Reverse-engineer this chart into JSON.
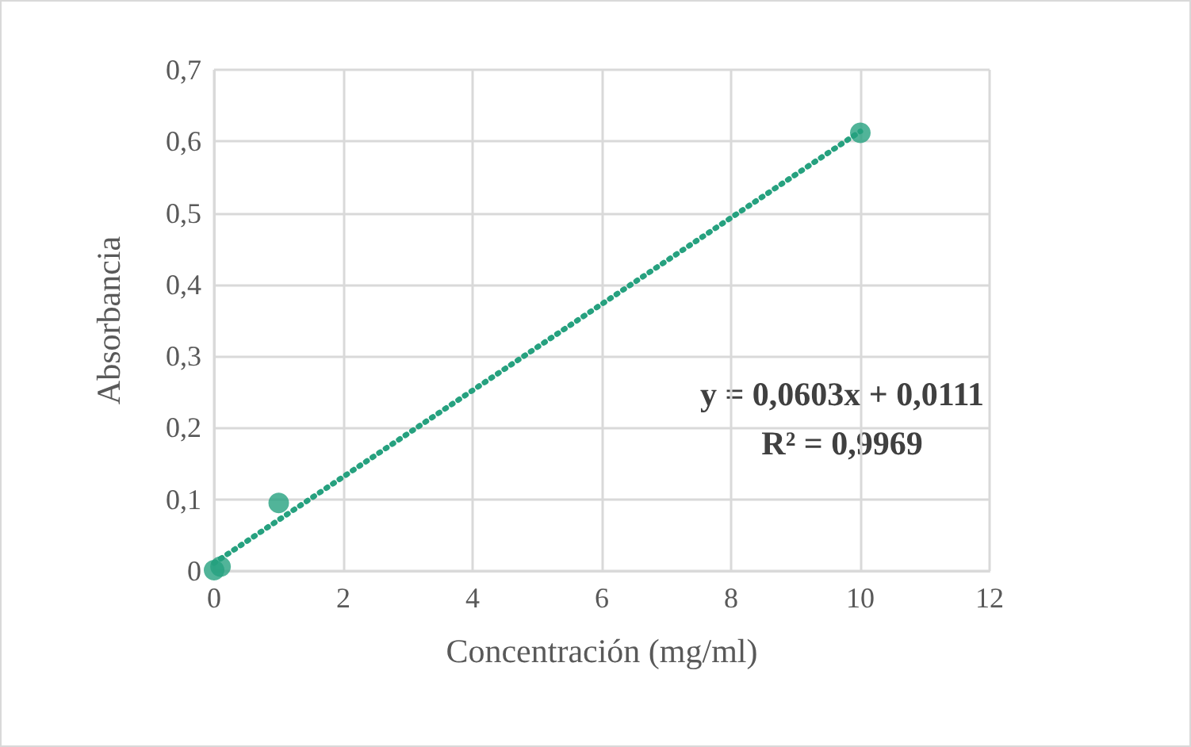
{
  "chart_data": {
    "type": "scatter",
    "xlabel": "Concentración (mg/ml)",
    "ylabel": "Absorbancia",
    "xlim": [
      0,
      12
    ],
    "xticks": [
      0,
      2,
      4,
      6,
      8,
      10,
      12
    ],
    "ylim": [
      0,
      0.7
    ],
    "yticks": [
      {
        "value": 0,
        "label": "0"
      },
      {
        "value": 0.1,
        "label": "0,1"
      },
      {
        "value": 0.2,
        "label": "0,2"
      },
      {
        "value": 0.3,
        "label": "0,3"
      },
      {
        "value": 0.4,
        "label": "0,4"
      },
      {
        "value": 0.5,
        "label": "0,5"
      },
      {
        "value": 0.6,
        "label": "0,6"
      },
      {
        "value": 0.7,
        "label": "0,7"
      }
    ],
    "grid": true,
    "marker": "circle",
    "series": [
      {
        "color": "#26a17f",
        "x": [
          0,
          0.1,
          1,
          10
        ],
        "values": [
          0.001,
          0.006,
          0.095,
          0.612
        ]
      },
      {
        "type": "line",
        "color": "#26a17f",
        "line_style": "dotted",
        "marker": "none",
        "x": [
          0,
          10
        ],
        "values": [
          0.011,
          0.614
        ]
      }
    ],
    "annotations": [
      "y = 0,0603x + 0,0111",
      "R² = 0,9969"
    ]
  }
}
